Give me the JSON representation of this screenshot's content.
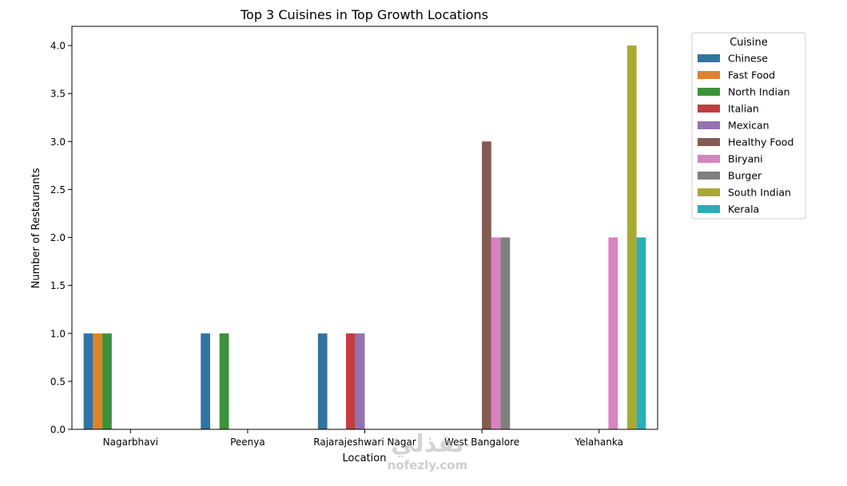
{
  "chart_data": {
    "type": "bar",
    "title": "Top 3 Cuisines in Top Growth Locations",
    "xlabel": "Location",
    "ylabel": "Number of Restaurants",
    "categories": [
      "Nagarbhavi",
      "Peenya",
      "Rajarajeshwari Nagar",
      "West Bangalore",
      "Yelahanka"
    ],
    "ylim": [
      0,
      4.2
    ],
    "yticks": [
      "0.0",
      "0.5",
      "1.0",
      "1.5",
      "2.0",
      "2.5",
      "3.0",
      "3.5",
      "4.0"
    ],
    "grid": false,
    "legend": {
      "title": "Cuisine",
      "placement": "outside-right"
    },
    "series": [
      {
        "name": "Chinese",
        "color": "#3274a1",
        "values": [
          1,
          1,
          1,
          null,
          null
        ]
      },
      {
        "name": "Fast Food",
        "color": "#e1812c",
        "values": [
          1,
          null,
          null,
          null,
          null
        ]
      },
      {
        "name": "North Indian",
        "color": "#3a923a",
        "values": [
          1,
          1,
          null,
          null,
          null
        ]
      },
      {
        "name": "Italian",
        "color": "#c03d3e",
        "values": [
          null,
          null,
          1,
          null,
          null
        ]
      },
      {
        "name": "Mexican",
        "color": "#9372b2",
        "values": [
          null,
          null,
          1,
          null,
          null
        ]
      },
      {
        "name": "Healthy Food",
        "color": "#845b53",
        "values": [
          null,
          null,
          null,
          3,
          null
        ]
      },
      {
        "name": "Biryani",
        "color": "#d684bd",
        "values": [
          null,
          null,
          null,
          2,
          2
        ]
      },
      {
        "name": "Burger",
        "color": "#7f7f7f",
        "values": [
          null,
          null,
          null,
          2,
          null
        ]
      },
      {
        "name": "South Indian",
        "color": "#a9aa35",
        "values": [
          null,
          null,
          null,
          null,
          4
        ]
      },
      {
        "name": "Kerala",
        "color": "#2eabb8",
        "values": [
          null,
          null,
          null,
          null,
          2
        ]
      }
    ]
  },
  "watermark": {
    "logo": "نفذلي",
    "url": "nofezly.com"
  }
}
